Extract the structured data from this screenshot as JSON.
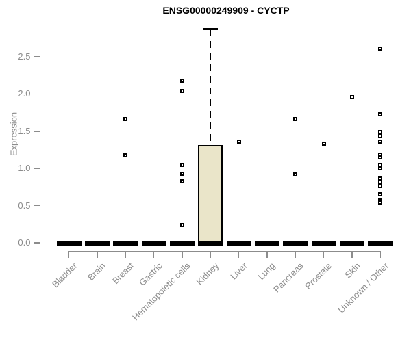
{
  "title": "ENSG00000249909 - CYCTP",
  "chart_data": {
    "type": "boxplot",
    "title": "ENSG00000249909 - CYCTP",
    "xlabel": "",
    "ylabel": "Expression",
    "ylim": [
      0,
      2.9
    ],
    "ytick_labels": [
      "0.0",
      "0.5",
      "1.0",
      "1.5",
      "2.0",
      "2.5"
    ],
    "ytick_values": [
      0.0,
      0.5,
      1.0,
      1.5,
      2.0,
      2.5
    ],
    "grid": false,
    "legend": "none",
    "categories": [
      "Bladder",
      "Brain",
      "Breast",
      "Gastric",
      "Hematopoietic cells",
      "Kidney",
      "Liver",
      "Lung",
      "Pancreas",
      "Prostate",
      "Skin",
      "Unknown / Other"
    ],
    "boxes": [
      {
        "category": "Bladder",
        "whisker_low": 0,
        "q1": 0,
        "median": 0,
        "q3": 0,
        "whisker_high": 0,
        "outliers": []
      },
      {
        "category": "Brain",
        "whisker_low": 0,
        "q1": 0,
        "median": 0,
        "q3": 0,
        "whisker_high": 0,
        "outliers": []
      },
      {
        "category": "Breast",
        "whisker_low": 0,
        "q1": 0,
        "median": 0,
        "q3": 0,
        "whisker_high": 0,
        "outliers": [
          1.66,
          1.18
        ]
      },
      {
        "category": "Gastric",
        "whisker_low": 0,
        "q1": 0,
        "median": 0,
        "q3": 0,
        "whisker_high": 0,
        "outliers": []
      },
      {
        "category": "Hematopoietic cells",
        "whisker_low": 0,
        "q1": 0,
        "median": 0,
        "q3": 0,
        "whisker_high": 0,
        "outliers": [
          2.18,
          2.04,
          1.05,
          0.93,
          0.83,
          0.24
        ]
      },
      {
        "category": "Kidney",
        "whisker_low": 0,
        "q1": 0,
        "median": 0,
        "q3": 1.31,
        "whisker_high": 2.87,
        "outliers": []
      },
      {
        "category": "Liver",
        "whisker_low": 0,
        "q1": 0,
        "median": 0,
        "q3": 0,
        "whisker_high": 0,
        "outliers": [
          1.36
        ]
      },
      {
        "category": "Lung",
        "whisker_low": 0,
        "q1": 0,
        "median": 0,
        "q3": 0,
        "whisker_high": 0,
        "outliers": []
      },
      {
        "category": "Pancreas",
        "whisker_low": 0,
        "q1": 0,
        "median": 0,
        "q3": 0,
        "whisker_high": 0,
        "outliers": [
          1.66,
          0.92
        ]
      },
      {
        "category": "Prostate",
        "whisker_low": 0,
        "q1": 0,
        "median": 0,
        "q3": 0,
        "whisker_high": 0,
        "outliers": [
          1.33
        ]
      },
      {
        "category": "Skin",
        "whisker_low": 0,
        "q1": 0,
        "median": 0,
        "q3": 0,
        "whisker_high": 0,
        "outliers": [
          1.96
        ]
      },
      {
        "category": "Unknown / Other",
        "whisker_low": 0,
        "q1": 0,
        "median": 0,
        "q3": 0,
        "whisker_high": 0,
        "outliers": [
          2.61,
          1.73,
          1.49,
          1.43,
          1.36,
          1.19,
          1.15,
          1.05,
          1.0,
          0.86,
          0.82,
          0.76,
          0.65,
          0.57,
          0.54
        ]
      }
    ],
    "colors": {
      "box_fill": "#eae5c9",
      "box_border": "#000000",
      "median": "#000000",
      "outlier": "#000000",
      "axis": "#8c8c8c",
      "tick_label": "#8c8c8c",
      "title": "#000000",
      "background": "#ffffff"
    }
  }
}
